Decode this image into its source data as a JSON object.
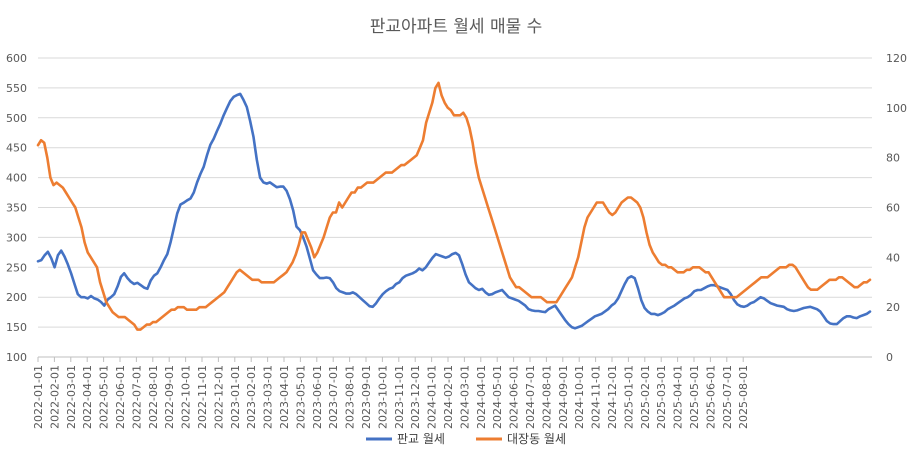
{
  "chart_data": {
    "type": "line",
    "title": "판교아파트 월세 매물 수",
    "x_tick_labels": [
      "2022-01-01",
      "2022-02-01",
      "2022-03-01",
      "2022-04-01",
      "2022-05-01",
      "2022-06-01",
      "2022-07-01",
      "2022-08-01",
      "2022-09-01",
      "2022-10-01",
      "2022-11-01",
      "2022-12-01",
      "2023-01-01",
      "2023-02-01",
      "2023-03-01",
      "2023-04-01",
      "2023-05-01",
      "2023-06-01",
      "2023-07-01",
      "2023-08-01",
      "2023-09-01",
      "2023-10-01",
      "2023-11-01",
      "2023-12-01",
      "2024-01-01",
      "2024-02-01",
      "2024-03-01",
      "2024-04-01",
      "2024-05-01",
      "2024-06-01",
      "2024-07-01",
      "2024-08-01",
      "2024-09-01",
      "2024-10-01",
      "2024-11-01",
      "2024-12-01",
      "2025-01-01",
      "2025-02-01",
      "2025-03-01",
      "2025-04-01",
      "2025-05-01",
      "2025-06-01",
      "2025-07-01",
      "2025-08-01"
    ],
    "y_left": {
      "min": 100,
      "max": 600,
      "ticks": [
        100,
        150,
        200,
        250,
        300,
        350,
        400,
        450,
        500,
        550,
        600
      ]
    },
    "y_right": {
      "min": 0,
      "max": 120,
      "ticks": [
        0,
        20,
        40,
        60,
        80,
        100,
        120
      ]
    },
    "grid": "horizontal",
    "legend_position": "bottom",
    "series": [
      {
        "name": "판교 월세",
        "axis": "left",
        "color": "#4472C4",
        "values": [
          260,
          262,
          270,
          276,
          265,
          250,
          270,
          278,
          268,
          255,
          240,
          222,
          205,
          200,
          200,
          198,
          202,
          198,
          196,
          192,
          186,
          196,
          200,
          205,
          218,
          234,
          240,
          232,
          226,
          222,
          224,
          220,
          216,
          214,
          228,
          236,
          240,
          250,
          262,
          272,
          292,
          316,
          340,
          355,
          358,
          362,
          365,
          375,
          392,
          406,
          418,
          438,
          455,
          465,
          478,
          490,
          504,
          516,
          528,
          535,
          538,
          540,
          530,
          518,
          495,
          468,
          430,
          400,
          392,
          390,
          392,
          388,
          384,
          385,
          385,
          378,
          364,
          345,
          318,
          312,
          300,
          285,
          265,
          245,
          238,
          232,
          232,
          233,
          232,
          225,
          215,
          210,
          208,
          206,
          206,
          208,
          205,
          200,
          195,
          190,
          185,
          184,
          190,
          198,
          205,
          210,
          214,
          216,
          222,
          225,
          232,
          236,
          238,
          240,
          243,
          248,
          245,
          250,
          258,
          266,
          272,
          270,
          268,
          266,
          268,
          272,
          274,
          270,
          255,
          238,
          225,
          220,
          215,
          212,
          214,
          208,
          204,
          205,
          208,
          210,
          212,
          206,
          200,
          198,
          196,
          194,
          190,
          186,
          180,
          178,
          177,
          177,
          176,
          175,
          180,
          183,
          186,
          178,
          170,
          162,
          155,
          150,
          148,
          150,
          152,
          156,
          160,
          164,
          168,
          170,
          172,
          176,
          180,
          186,
          190,
          198,
          210,
          222,
          232,
          235,
          232,
          215,
          195,
          182,
          176,
          172,
          172,
          170,
          172,
          175,
          180,
          183,
          186,
          190,
          194,
          198,
          200,
          204,
          210,
          212,
          212,
          215,
          218,
          220,
          220,
          218,
          216,
          214,
          212,
          205,
          195,
          188,
          185,
          184,
          186,
          190,
          192,
          196,
          200,
          198,
          194,
          190,
          188,
          186,
          185,
          184,
          180,
          178,
          177,
          178,
          180,
          182,
          183,
          184,
          182,
          180,
          176,
          168,
          160,
          156,
          155,
          155,
          160,
          165,
          168,
          168,
          166,
          165,
          168,
          170,
          172,
          176
        ]
      },
      {
        "name": "대장동 월세",
        "axis": "right",
        "color": "#ED7D31",
        "values": [
          85,
          87,
          86,
          80,
          72,
          69,
          70,
          69,
          68,
          66,
          64,
          62,
          60,
          56,
          52,
          46,
          42,
          40,
          38,
          36,
          30,
          26,
          22,
          20,
          18,
          17,
          16,
          16,
          16,
          15,
          14,
          13,
          11,
          11,
          12,
          13,
          13,
          14,
          14,
          15,
          16,
          17,
          18,
          19,
          19,
          20,
          20,
          20,
          19,
          19,
          19,
          19,
          20,
          20,
          20,
          21,
          22,
          23,
          24,
          25,
          26,
          28,
          30,
          32,
          34,
          35,
          34,
          33,
          32,
          31,
          31,
          31,
          30,
          30,
          30,
          30,
          30,
          31,
          32,
          33,
          34,
          36,
          38,
          41,
          45,
          50,
          50,
          47,
          44,
          40,
          42,
          45,
          48,
          52,
          56,
          58,
          58,
          62,
          60,
          62,
          64,
          66,
          66,
          68,
          68,
          69,
          70,
          70,
          70,
          71,
          72,
          73,
          74,
          74,
          74,
          75,
          76,
          77,
          77,
          78,
          79,
          80,
          81,
          84,
          87,
          94,
          98,
          102,
          108,
          110,
          105,
          102,
          100,
          99,
          97,
          97,
          97,
          98,
          96,
          92,
          86,
          78,
          72,
          68,
          64,
          60,
          56,
          52,
          48,
          44,
          40,
          36,
          32,
          30,
          28,
          28,
          27,
          26,
          25,
          24,
          24,
          24,
          24,
          23,
          22,
          22,
          22,
          22,
          24,
          26,
          28,
          30,
          32,
          36,
          40,
          46,
          52,
          56,
          58,
          60,
          62,
          62,
          62,
          60,
          58,
          57,
          58,
          60,
          62,
          63,
          64,
          64,
          63,
          62,
          60,
          56,
          50,
          45,
          42,
          40,
          38,
          37,
          37,
          36,
          36,
          35,
          34,
          34,
          34,
          35,
          35,
          36,
          36,
          36,
          35,
          34,
          34,
          32,
          30,
          28,
          26,
          24,
          24,
          24,
          24,
          24,
          25,
          26,
          27,
          28,
          29,
          30,
          31,
          32,
          32,
          32,
          33,
          34,
          35,
          36,
          36,
          36,
          37,
          37,
          36,
          34,
          32,
          30,
          28,
          27,
          27,
          27,
          28,
          29,
          30,
          31,
          31,
          31,
          32,
          32,
          31,
          30,
          29,
          28,
          28,
          29,
          30,
          30,
          31
        ]
      }
    ]
  }
}
